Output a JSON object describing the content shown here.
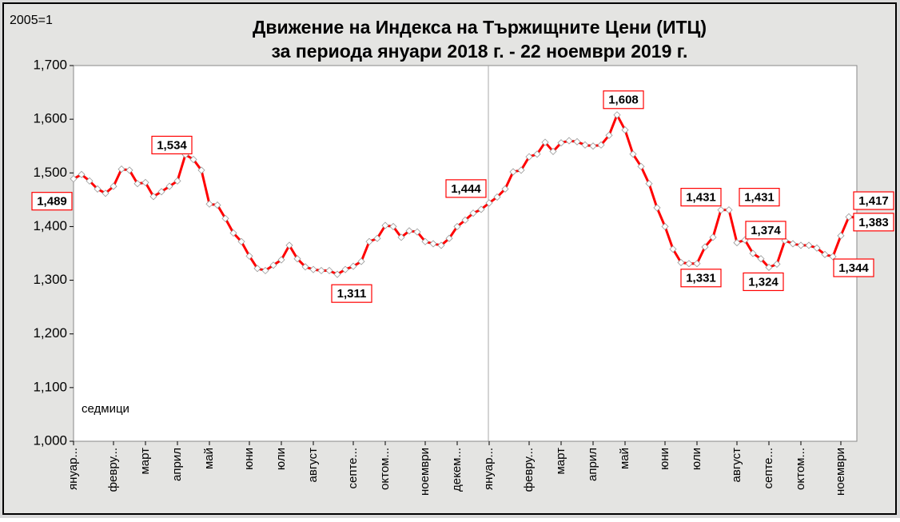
{
  "chart_data": {
    "type": "line",
    "title": "Движение на Индекса на Тържищните Цени (ИТЦ)",
    "subtitle": "за периода януари 2018 г. - 22 ноември 2019 г.",
    "unit_label": "2005=1",
    "x_label": "седмици",
    "categories": [
      "януар...",
      null,
      null,
      null,
      null,
      "февру...",
      null,
      null,
      null,
      "март",
      null,
      null,
      null,
      "април",
      null,
      null,
      null,
      "май",
      null,
      null,
      null,
      null,
      "юни",
      null,
      null,
      null,
      "юли",
      null,
      null,
      null,
      "август",
      null,
      null,
      null,
      null,
      "септе...",
      null,
      null,
      null,
      "октом...",
      null,
      null,
      null,
      null,
      "ноември",
      null,
      null,
      null,
      "декем...",
      null,
      null,
      null,
      "януар...",
      null,
      null,
      null,
      null,
      "февру...",
      null,
      null,
      null,
      "март",
      null,
      null,
      null,
      "април",
      null,
      null,
      null,
      "май",
      null,
      null,
      null,
      null,
      "юни",
      null,
      null,
      null,
      "юли",
      null,
      null,
      null,
      null,
      "август",
      null,
      null,
      null,
      "септе...",
      null,
      null,
      null,
      "октом...",
      null,
      null,
      null,
      null,
      "ноември",
      null,
      null
    ],
    "series": [
      {
        "name": "ИТЦ",
        "color": "#ff0000",
        "values": [
          1.489,
          1.497,
          1.485,
          1.47,
          1.462,
          1.475,
          1.507,
          1.505,
          1.48,
          1.482,
          1.456,
          1.465,
          1.475,
          1.485,
          1.534,
          1.525,
          1.505,
          1.442,
          1.44,
          1.415,
          1.388,
          1.372,
          1.345,
          1.322,
          1.318,
          1.328,
          1.338,
          1.365,
          1.34,
          1.325,
          1.32,
          1.318,
          1.318,
          1.311,
          1.32,
          1.326,
          1.335,
          1.372,
          1.378,
          1.402,
          1.4,
          1.38,
          1.392,
          1.39,
          1.372,
          1.368,
          1.365,
          1.378,
          1.4,
          1.412,
          1.425,
          1.432,
          1.444,
          1.455,
          1.47,
          1.502,
          1.505,
          1.53,
          1.535,
          1.557,
          1.54,
          1.556,
          1.56,
          1.558,
          1.552,
          1.55,
          1.552,
          1.57,
          1.608,
          1.58,
          1.535,
          1.512,
          1.48,
          1.435,
          1.4,
          1.358,
          1.333,
          1.331,
          1.331,
          1.362,
          1.38,
          1.431,
          1.431,
          1.37,
          1.375,
          1.35,
          1.34,
          1.324,
          1.33,
          1.374,
          1.368,
          1.365,
          1.365,
          1.36,
          1.348,
          1.344,
          1.383,
          1.418,
          1.417
        ],
        "value_labels": [
          "1,489",
          null,
          null,
          null,
          null,
          null,
          null,
          null,
          null,
          null,
          null,
          null,
          null,
          null,
          "1,534",
          null,
          null,
          null,
          null,
          null,
          null,
          null,
          null,
          null,
          null,
          null,
          null,
          null,
          null,
          null,
          null,
          null,
          null,
          "1,311",
          null,
          null,
          null,
          null,
          null,
          null,
          null,
          null,
          null,
          null,
          null,
          null,
          null,
          null,
          null,
          null,
          null,
          null,
          "1,444",
          null,
          null,
          null,
          null,
          null,
          null,
          null,
          null,
          null,
          null,
          null,
          null,
          null,
          null,
          null,
          "1,608",
          null,
          null,
          null,
          null,
          null,
          null,
          null,
          null,
          "1,331",
          null,
          null,
          null,
          "1,431",
          "1,431",
          null,
          null,
          null,
          null,
          "1,324",
          null,
          "1,374",
          null,
          null,
          null,
          null,
          null,
          "1,344",
          "1,383",
          null,
          "1,417"
        ]
      }
    ],
    "ylim": [
      1.0,
      1.7
    ],
    "yticks": [
      {
        "value": 1.0,
        "label": "1,000"
      },
      {
        "value": 1.1,
        "label": "1,100"
      },
      {
        "value": 1.2,
        "label": "1,200"
      },
      {
        "value": 1.3,
        "label": "1,300"
      },
      {
        "value": 1.4,
        "label": "1,400"
      },
      {
        "value": 1.5,
        "label": "1,500"
      },
      {
        "value": 1.6,
        "label": "1,600"
      },
      {
        "value": 1.7,
        "label": "1,700"
      }
    ],
    "grid": false
  }
}
